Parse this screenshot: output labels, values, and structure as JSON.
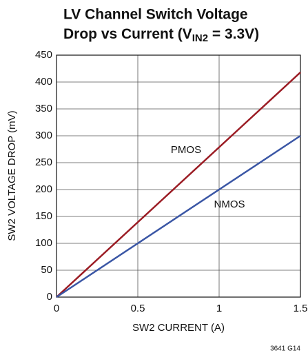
{
  "chart_data": {
    "type": "line",
    "title_lines": [
      "LV Channel Switch Voltage",
      [
        "Drop vs Current (V",
        "IN2",
        " = 3.3V)"
      ]
    ],
    "x_label": "SW2 CURRENT (A)",
    "y_label": "SW2 VOLTAGE DROP (mV)",
    "x": [
      0,
      1.5
    ],
    "series": [
      {
        "name": "PMOS",
        "color": "#9b1c24",
        "values": [
          0,
          418
        ]
      },
      {
        "name": "NMOS",
        "color": "#3a56a5",
        "values": [
          0,
          300
        ]
      }
    ],
    "xlim": [
      0,
      1.5
    ],
    "xticks": [
      0,
      0.5,
      1,
      1.5
    ],
    "ylim": [
      0,
      450
    ],
    "yticks": [
      0,
      50,
      100,
      150,
      200,
      250,
      300,
      350,
      400,
      450
    ],
    "grid": true,
    "footnote": "3641 G14"
  }
}
